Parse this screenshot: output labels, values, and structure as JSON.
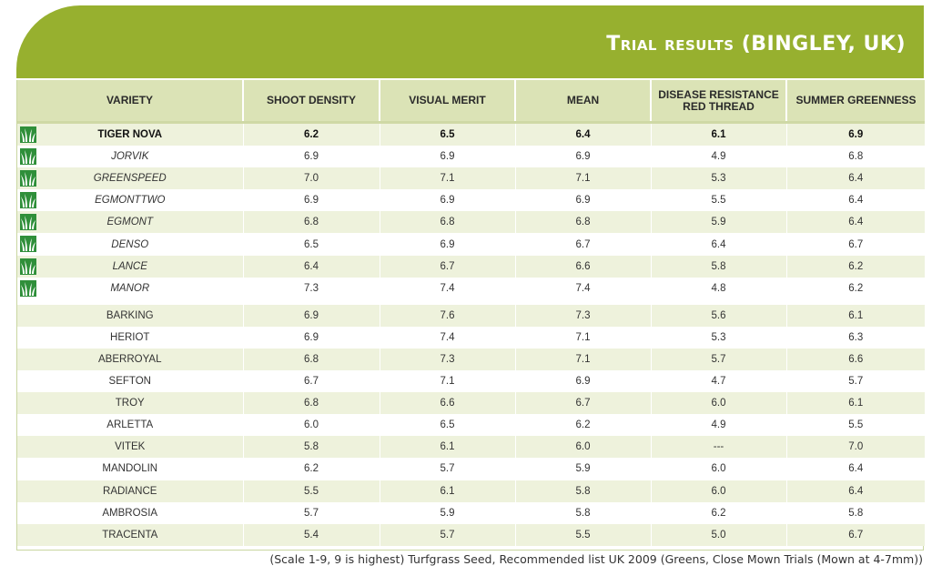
{
  "title": "Trial results (BINGLEY, UK)",
  "columns": [
    "VARIETY",
    "SHOOT DENSITY",
    "VISUAL MERIT",
    "MEAN",
    "DISEASE RESISTANCE RED THREAD",
    "SUMMER GREENNESS"
  ],
  "columns_lines": {
    "disease_line1": "DISEASE RESISTANCE",
    "disease_line2": "RED THREAD"
  },
  "highlight_rows": [
    {
      "variety": "TIGER NOVA",
      "shoot_density": "6.2",
      "visual_merit": "6.5",
      "mean": "6.4",
      "disease_resistance": "6.1",
      "summer_greenness": "6.9",
      "icon": "grass-icon",
      "style": "bold"
    },
    {
      "variety": "JORVIK",
      "shoot_density": "6.9",
      "visual_merit": "6.9",
      "mean": "6.9",
      "disease_resistance": "4.9",
      "summer_greenness": "6.8",
      "icon": "grass-icon",
      "style": "italic"
    },
    {
      "variety": "GREENSPEED",
      "shoot_density": "7.0",
      "visual_merit": "7.1",
      "mean": "7.1",
      "disease_resistance": "5.3",
      "summer_greenness": "6.4",
      "icon": "grass-icon",
      "style": "italic"
    },
    {
      "variety": "EGMONTTWO",
      "shoot_density": "6.9",
      "visual_merit": "6.9",
      "mean": "6.9",
      "disease_resistance": "5.5",
      "summer_greenness": "6.4",
      "icon": "grass-icon",
      "style": "italic"
    },
    {
      "variety": "EGMONT",
      "shoot_density": "6.8",
      "visual_merit": "6.8",
      "mean": "6.8",
      "disease_resistance": "5.9",
      "summer_greenness": "6.4",
      "icon": "grass-icon",
      "style": "italic"
    },
    {
      "variety": "DENSO",
      "shoot_density": "6.5",
      "visual_merit": "6.9",
      "mean": "6.7",
      "disease_resistance": "6.4",
      "summer_greenness": "6.7",
      "icon": "grass-icon",
      "style": "italic"
    },
    {
      "variety": "LANCE",
      "shoot_density": "6.4",
      "visual_merit": "6.7",
      "mean": "6.6",
      "disease_resistance": "5.8",
      "summer_greenness": "6.2",
      "icon": "grass-icon",
      "style": "italic"
    },
    {
      "variety": "MANOR",
      "shoot_density": "7.3",
      "visual_merit": "7.4",
      "mean": "7.4",
      "disease_resistance": "4.8",
      "summer_greenness": "6.2",
      "icon": "grass-icon",
      "style": "italic"
    }
  ],
  "other_rows": [
    {
      "variety": "BARKING",
      "shoot_density": "6.9",
      "visual_merit": "7.6",
      "mean": "7.3",
      "disease_resistance": "5.6",
      "summer_greenness": "6.1"
    },
    {
      "variety": "HERIOT",
      "shoot_density": "6.9",
      "visual_merit": "7.4",
      "mean": "7.1",
      "disease_resistance": "5.3",
      "summer_greenness": "6.3"
    },
    {
      "variety": "ABERROYAL",
      "shoot_density": "6.8",
      "visual_merit": "7.3",
      "mean": "7.1",
      "disease_resistance": "5.7",
      "summer_greenness": "6.6"
    },
    {
      "variety": "SEFTON",
      "shoot_density": "6.7",
      "visual_merit": "7.1",
      "mean": "6.9",
      "disease_resistance": "4.7",
      "summer_greenness": "5.7"
    },
    {
      "variety": "TROY",
      "shoot_density": "6.8",
      "visual_merit": "6.6",
      "mean": "6.7",
      "disease_resistance": "6.0",
      "summer_greenness": "6.1"
    },
    {
      "variety": "ARLETTA",
      "shoot_density": "6.0",
      "visual_merit": "6.5",
      "mean": "6.2",
      "disease_resistance": "4.9",
      "summer_greenness": "5.5"
    },
    {
      "variety": "VITEK",
      "shoot_density": "5.8",
      "visual_merit": "6.1",
      "mean": "6.0",
      "disease_resistance": "---",
      "summer_greenness": "7.0"
    },
    {
      "variety": "MANDOLIN",
      "shoot_density": "6.2",
      "visual_merit": "5.7",
      "mean": "5.9",
      "disease_resistance": "6.0",
      "summer_greenness": "6.4"
    },
    {
      "variety": "RADIANCE",
      "shoot_density": "5.5",
      "visual_merit": "6.1",
      "mean": "5.8",
      "disease_resistance": "6.0",
      "summer_greenness": "6.4"
    },
    {
      "variety": "AMBROSIA",
      "shoot_density": "5.7",
      "visual_merit": "5.9",
      "mean": "5.8",
      "disease_resistance": "6.2",
      "summer_greenness": "5.8"
    },
    {
      "variety": "TRACENTA",
      "shoot_density": "5.4",
      "visual_merit": "5.7",
      "mean": "5.5",
      "disease_resistance": "5.0",
      "summer_greenness": "6.7"
    }
  ],
  "footnote": "(Scale 1-9, 9 is highest) Turfgrass Seed, Recommended list UK 2009 (Greens, Close Mown Trials (Mown at 4-7mm))",
  "colors": {
    "header_band": "#97b02f",
    "header_row": "#dbe3b6",
    "row_shade": "#eef2dc",
    "icon_green": "#2f8f3a"
  }
}
